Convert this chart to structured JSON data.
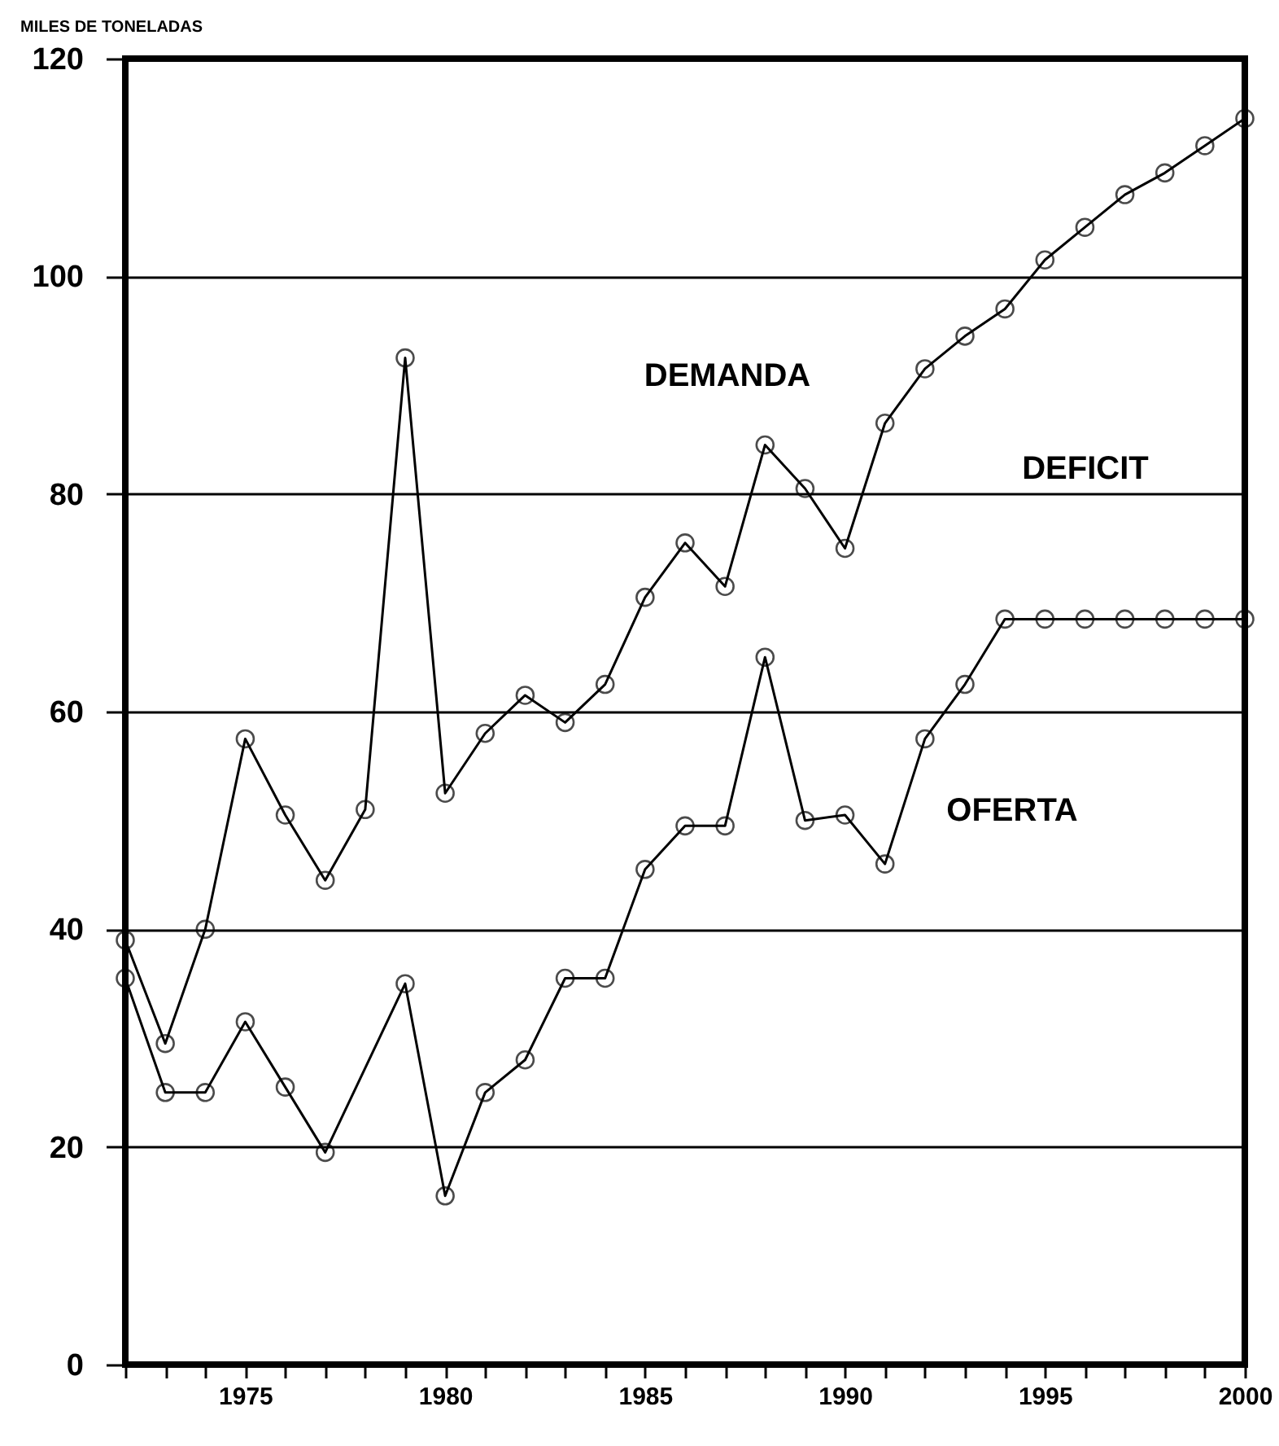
{
  "chart_data": {
    "type": "line",
    "ylabel": "MILES DE TONELADAS",
    "x": [
      1972,
      1973,
      1974,
      1975,
      1976,
      1977,
      1978,
      1979,
      1980,
      1981,
      1982,
      1983,
      1984,
      1985,
      1986,
      1987,
      1988,
      1989,
      1990,
      1991,
      1992,
      1993,
      1994,
      1995,
      1996,
      1997,
      1998,
      1999,
      2000
    ],
    "series": [
      {
        "name": "DEMANDA",
        "color": "#000000",
        "values": [
          39,
          29.5,
          40,
          57.5,
          50.5,
          44.5,
          51,
          92.5,
          52.5,
          58,
          61.5,
          59,
          62.5,
          70.5,
          75.5,
          71.5,
          84.5,
          80.5,
          75,
          86.5,
          91.5,
          94.5,
          97,
          101.5,
          104.5,
          107.5,
          109.5,
          112,
          114.5
        ]
      },
      {
        "name": "OFERTA",
        "color": "#000000",
        "x": [
          1972,
          1973,
          1974,
          1975,
          1976,
          1977,
          1979,
          1980,
          1981,
          1982,
          1983,
          1984,
          1985,
          1986,
          1987,
          1988,
          1989,
          1990,
          1991,
          1992,
          1993,
          1994,
          1995,
          1996,
          1997,
          1998,
          1999,
          2000
        ],
        "values": [
          35.5,
          25,
          25,
          31.5,
          25.5,
          19.5,
          35,
          15.5,
          25,
          28,
          35.5,
          35.5,
          45.5,
          49.5,
          49.5,
          65,
          50,
          50.5,
          46,
          57.5,
          62.5,
          68.5,
          68.5,
          68.5,
          68.5,
          68.5,
          68.5,
          68.5
        ]
      }
    ],
    "annotations": [
      "DEFICIT"
    ],
    "xlim": [
      1972,
      2000
    ],
    "xticks": [
      {
        "value": 1972,
        "label": null
      },
      {
        "value": 1973,
        "label": null
      },
      {
        "value": 1974,
        "label": null
      },
      1975,
      {
        "value": 1976,
        "label": null
      },
      {
        "value": 1977,
        "label": null
      },
      {
        "value": 1978,
        "label": null
      },
      {
        "value": 1979,
        "label": null
      },
      1980,
      {
        "value": 1981,
        "label": null
      },
      {
        "value": 1982,
        "label": null
      },
      {
        "value": 1983,
        "label": null
      },
      {
        "value": 1984,
        "label": null
      },
      1985,
      {
        "value": 1986,
        "label": null
      },
      {
        "value": 1987,
        "label": null
      },
      {
        "value": 1988,
        "label": null
      },
      {
        "value": 1989,
        "label": null
      },
      1990,
      {
        "value": 1991,
        "label": null
      },
      {
        "value": 1992,
        "label": null
      },
      {
        "value": 1993,
        "label": null
      },
      {
        "value": 1994,
        "label": null
      },
      1995,
      {
        "value": 1996,
        "label": null
      },
      {
        "value": 1997,
        "label": null
      },
      {
        "value": 1998,
        "label": null
      },
      {
        "value": 1999,
        "label": null
      },
      2000
    ],
    "ylim": [
      0,
      120
    ],
    "yticks": [
      0,
      20,
      40,
      60,
      80,
      100,
      120
    ],
    "grid": "y",
    "legend": false,
    "marker": "circle",
    "line_style": "solid"
  }
}
